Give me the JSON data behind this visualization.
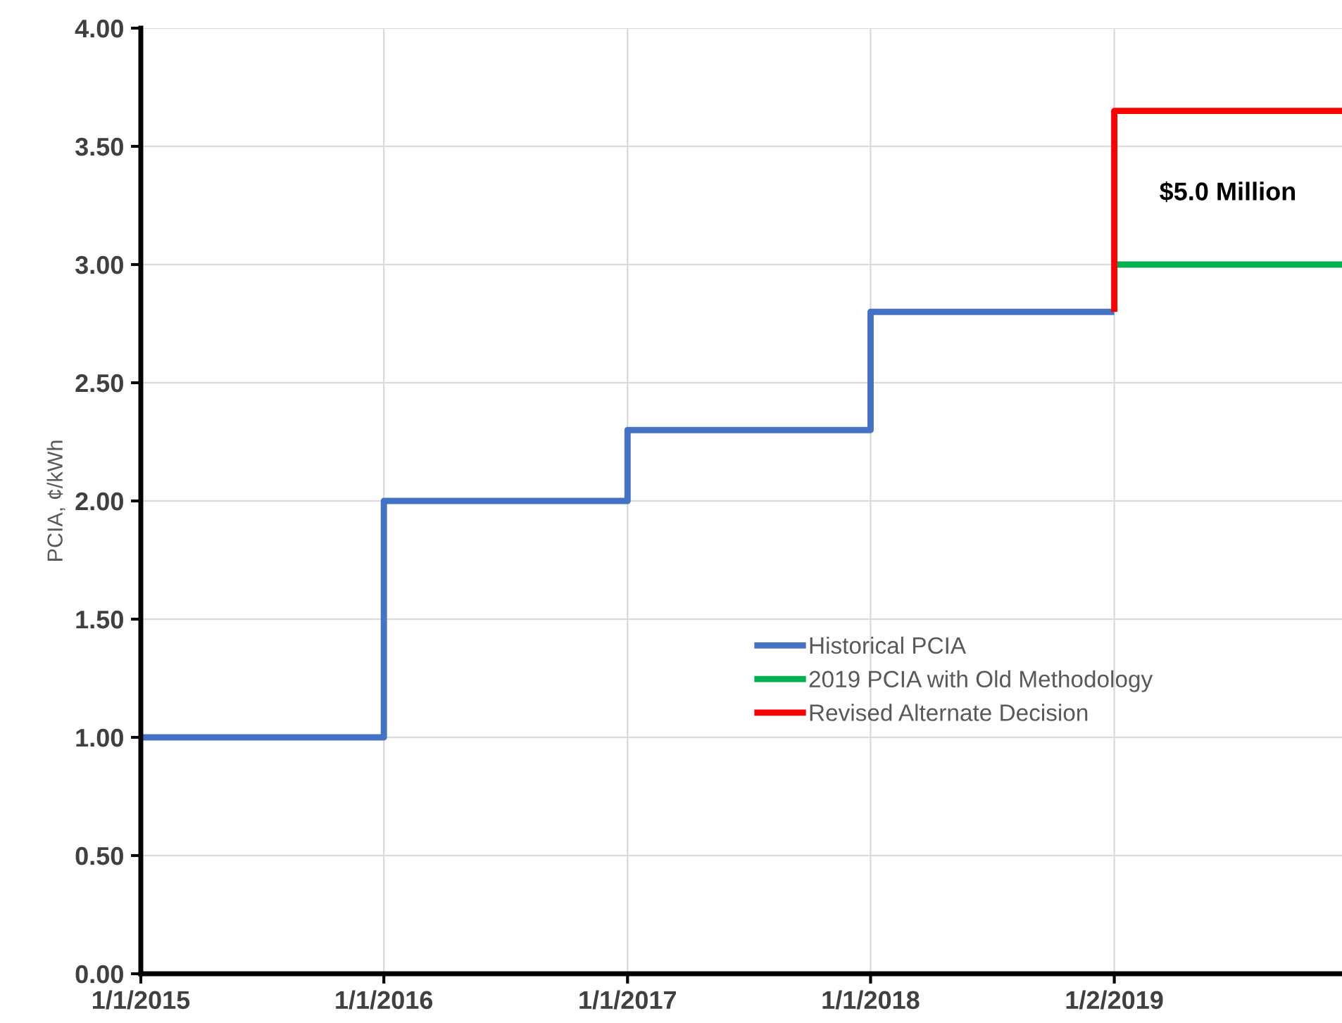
{
  "chart_data": {
    "type": "line",
    "ylabel": "PCIA, ¢/kWh",
    "xlim": [
      "2015-01-01",
      "2019-12-10"
    ],
    "xticks": [
      {
        "value": "2015-01-01",
        "label": "1/1/2015"
      },
      {
        "value": "2016-01-01",
        "label": "1/1/2016"
      },
      {
        "value": "2017-01-01",
        "label": "1/1/2017"
      },
      {
        "value": "2018-01-01",
        "label": "1/1/2018"
      },
      {
        "value": "2019-01-02",
        "label": "1/2/2019"
      }
    ],
    "ylim": [
      0,
      4
    ],
    "yticks": [
      {
        "value": 0,
        "label": "0.00"
      },
      {
        "value": 0.5,
        "label": "0.50"
      },
      {
        "value": 1,
        "label": "1.00"
      },
      {
        "value": 1.5,
        "label": "1.50"
      },
      {
        "value": 2,
        "label": "2.00"
      },
      {
        "value": 2.5,
        "label": "2.50"
      },
      {
        "value": 3,
        "label": "3.00"
      },
      {
        "value": 3.5,
        "label": "3.50"
      },
      {
        "value": 4,
        "label": "4.00"
      }
    ],
    "grid": true,
    "legend": "bottom right",
    "series": [
      {
        "name": "Historical PCIA",
        "color": "#4472c4",
        "type": "step",
        "x": [
          "2015-01-01",
          "2016-01-01",
          "2017-01-01",
          "2018-01-01",
          "2019-01-02"
        ],
        "values": [
          1.0,
          2.0,
          2.3,
          2.8,
          2.8
        ]
      },
      {
        "name": "2019 PCIA with Old Methodology",
        "color": "#00b050",
        "x": [
          "2019-01-02",
          "2019-12-10"
        ],
        "values": [
          3.0,
          3.0
        ]
      },
      {
        "name": "Revised Alternate Decision",
        "color": "#ff0000",
        "x": [
          "2019-01-02",
          "2019-01-02",
          "2019-12-10"
        ],
        "values": [
          2.8,
          3.65,
          3.65
        ]
      }
    ],
    "annotations": [
      "$5.0 Million"
    ]
  }
}
